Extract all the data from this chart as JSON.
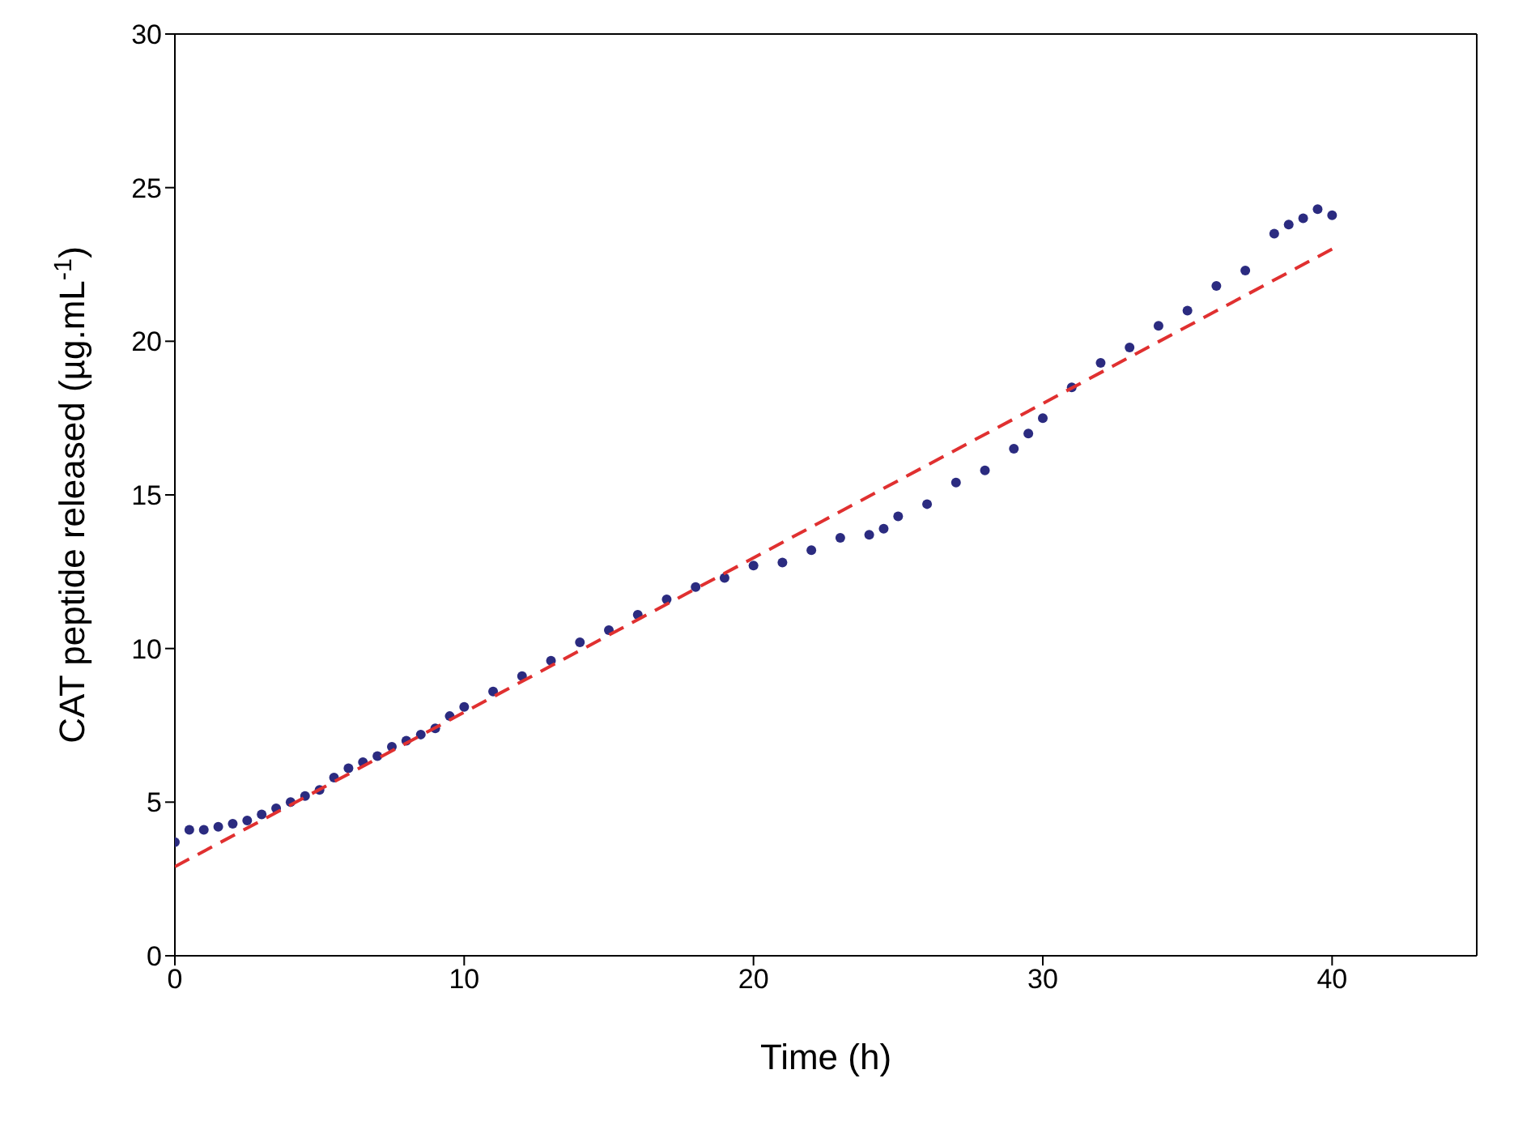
{
  "chart_data": {
    "type": "scatter",
    "xlabel": "Time (h)",
    "ylabel": "CAT peptide released (µg.mL$^{-1}$)",
    "xlim": [
      0,
      45
    ],
    "xticks": [
      0,
      10,
      20,
      30,
      40
    ],
    "ylim": [
      0,
      30
    ],
    "yticks": [
      0,
      5,
      10,
      15,
      20,
      25,
      30
    ],
    "legend": false,
    "series": [
      {
        "marker": "circle",
        "color": "#2b2b80",
        "x": [
          0,
          0.5,
          1,
          1.5,
          2,
          2.5,
          3,
          3.5,
          4,
          4.5,
          5,
          5.5,
          6,
          6.5,
          7,
          7.5,
          8,
          8.5,
          9,
          9.5,
          10,
          11,
          12,
          13,
          14,
          15,
          16,
          17,
          18,
          19,
          20,
          21,
          22,
          23,
          24,
          24.5,
          25,
          26,
          27,
          28,
          29,
          29.5,
          30,
          31,
          32,
          33,
          34,
          35,
          36,
          37,
          38,
          38.5,
          39,
          39.5,
          40
        ],
        "values": [
          3.7,
          4.1,
          4.1,
          4.2,
          4.3,
          4.4,
          4.6,
          4.8,
          5.0,
          5.2,
          5.4,
          5.8,
          6.1,
          6.3,
          6.5,
          6.8,
          7.0,
          7.2,
          7.4,
          7.8,
          8.1,
          8.6,
          9.1,
          9.6,
          10.2,
          10.6,
          11.1,
          11.6,
          12.0,
          12.3,
          12.7,
          12.8,
          13.2,
          13.6,
          13.7,
          13.9,
          14.3,
          14.7,
          15.4,
          15.8,
          16.5,
          17.0,
          17.5,
          18.5,
          19.3,
          19.8,
          20.5,
          21.0,
          21.8,
          22.3,
          23.5,
          23.8,
          24.0,
          24.3,
          24.1
        ]
      },
      {
        "type": "line",
        "color": "#e03030",
        "line_style": "dashed",
        "x": [
          0,
          40
        ],
        "values": [
          2.9,
          23.0
        ]
      }
    ]
  }
}
